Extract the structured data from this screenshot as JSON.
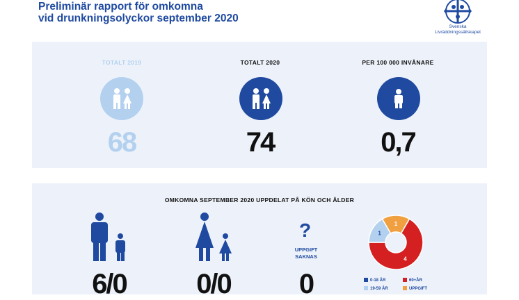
{
  "header": {
    "title_line1": "Preliminär rapport för omkomna",
    "title_line2": "vid drunkningsolyckor september 2020",
    "logo_text_line1": "Svenska",
    "logo_text_line2": "Livräddningssällskapet"
  },
  "totals": [
    {
      "label": "TOTALT 2019",
      "value": "68",
      "color": "#b3d1ef"
    },
    {
      "label": "TOTALT 2020",
      "value": "74",
      "color": "#1f4aa0"
    },
    {
      "label": "PER 100 000 INVÅNARE",
      "value": "0,7",
      "color": "#1f4aa0"
    }
  ],
  "breakdown": {
    "title": "OMKOMNA SEPTEMBER 2020 UPPDELAT PÅ KÖN OCH ÅLDER",
    "men": "6/0",
    "women": "0/0",
    "missing_line1": "UPPGIFT",
    "missing_line2": "SAKNAS",
    "missing_value": "0"
  },
  "chart_data": {
    "type": "pie",
    "categories": [
      "0-18 ÅR",
      "19-59 ÅR",
      "60+ÅR",
      "UPPGIFT"
    ],
    "values": [
      0,
      1,
      4,
      1
    ],
    "colors": [
      "#1f4aa0",
      "#b3d1ef",
      "#d42020",
      "#f0a040"
    ],
    "data_labels": [
      "",
      "1",
      "4",
      "1"
    ],
    "legend_position": "bottom"
  }
}
